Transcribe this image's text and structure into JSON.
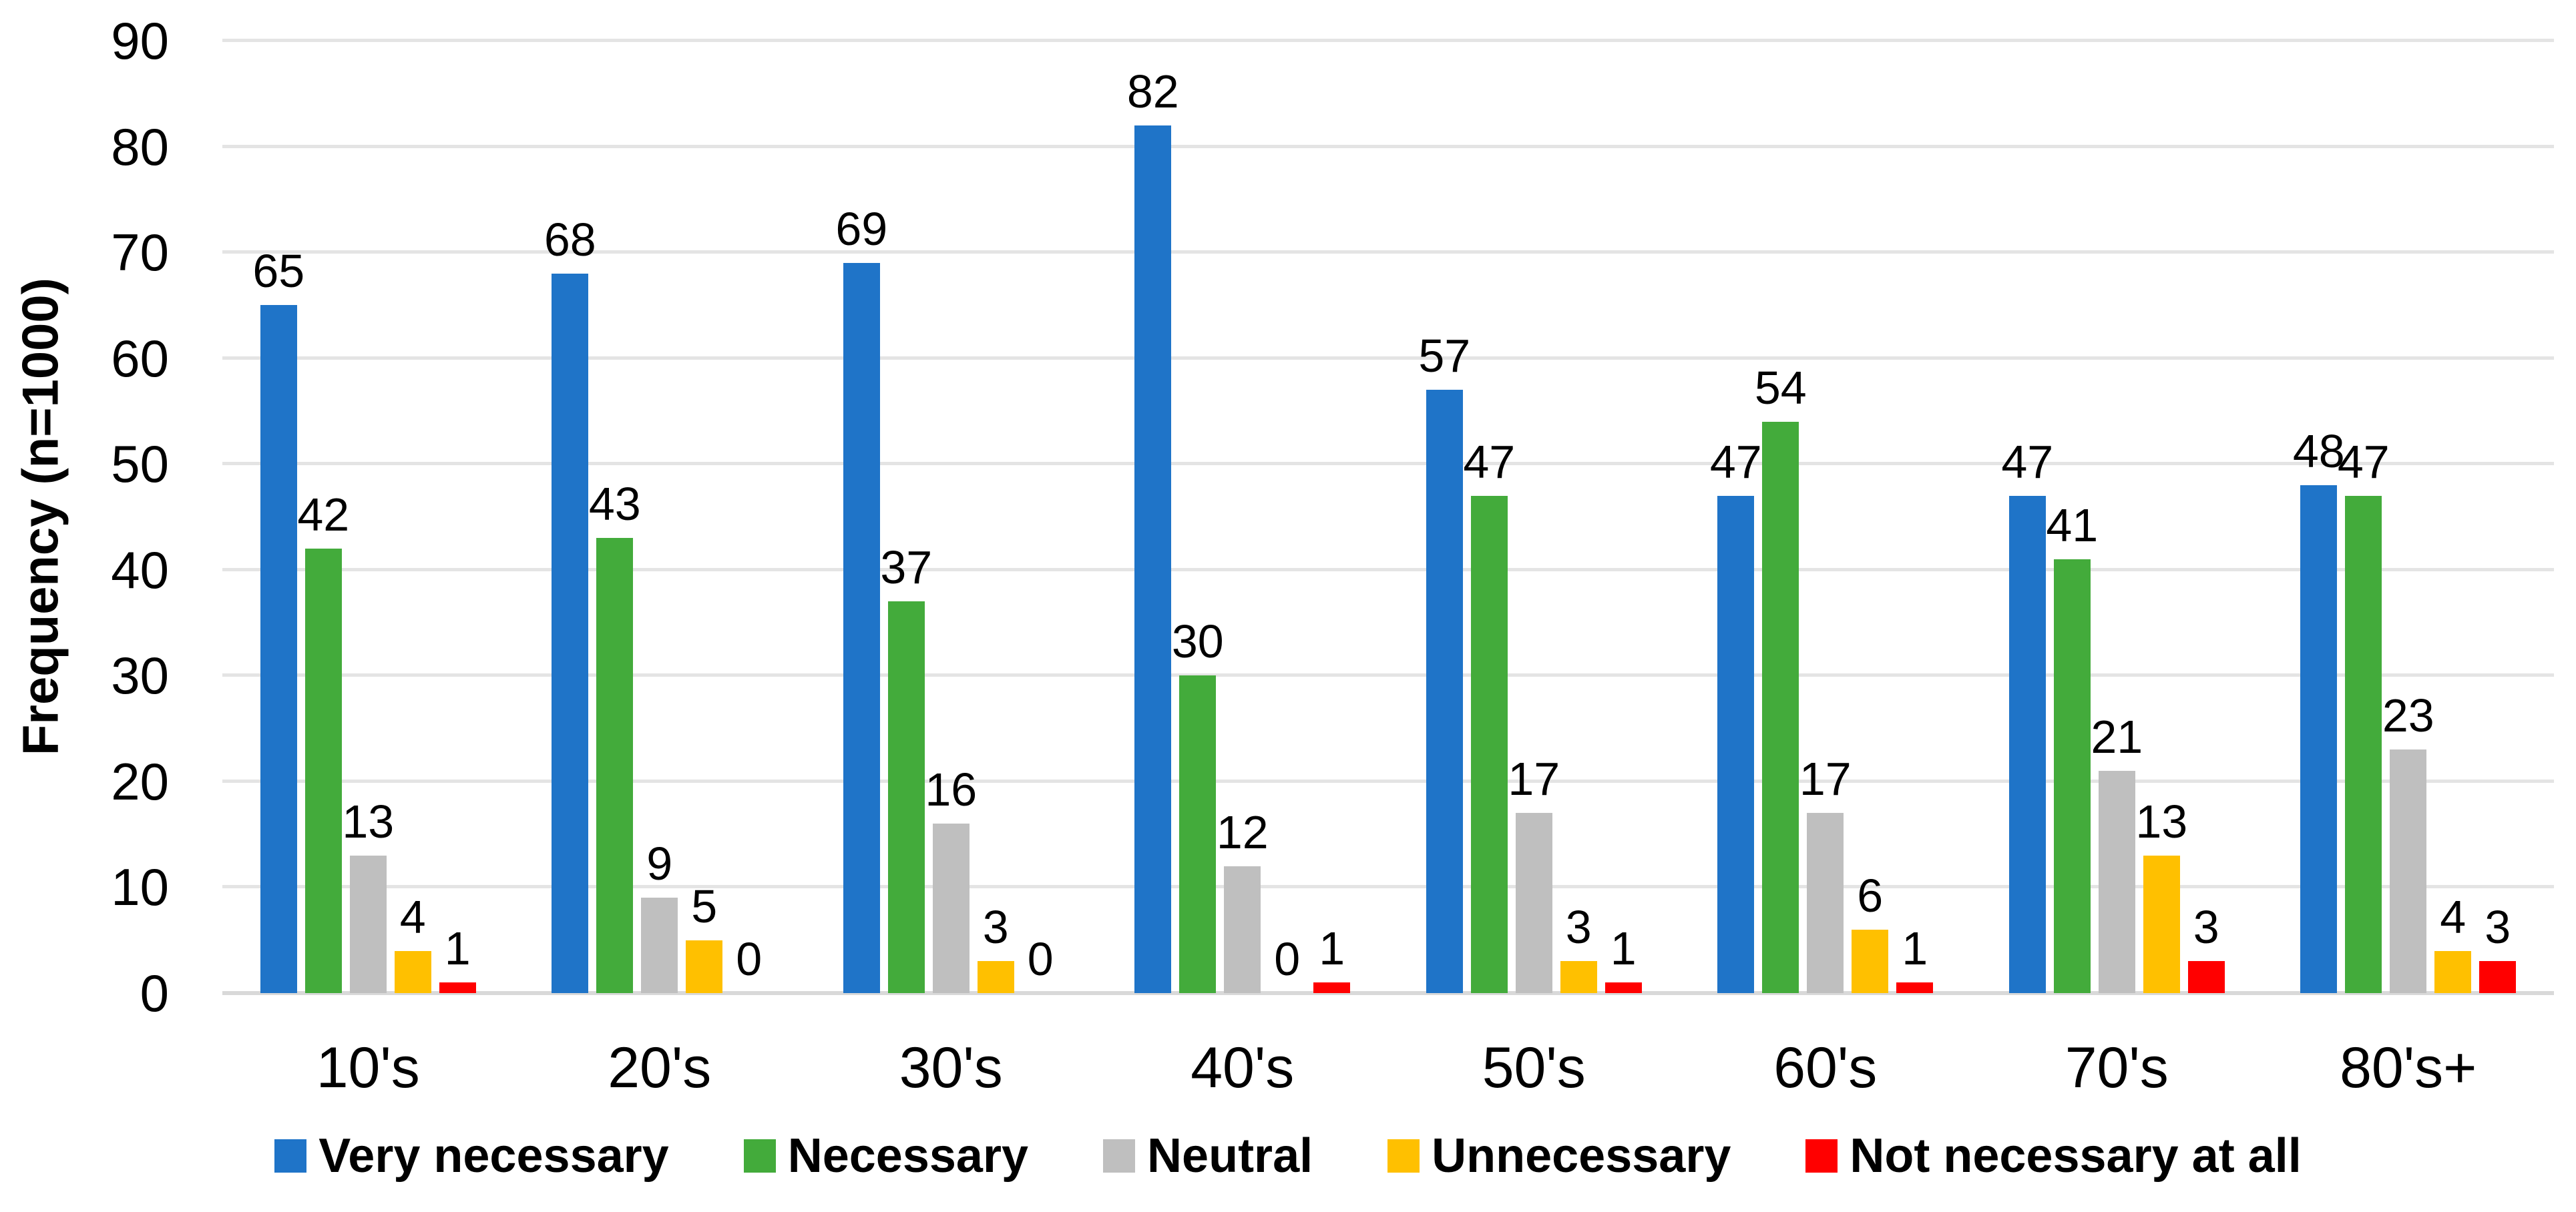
{
  "chart_data": {
    "type": "bar",
    "title": "",
    "xlabel": "",
    "ylabel": "Frequency (n=1000)",
    "ylim": [
      0,
      90
    ],
    "yticks": [
      0,
      10,
      20,
      30,
      40,
      50,
      60,
      70,
      80,
      90
    ],
    "grid": "horizontal",
    "legend_position": "bottom",
    "bar_value_labels": true,
    "categories": [
      "10's",
      "20's",
      "30's",
      "40's",
      "50's",
      "60's",
      "70's",
      "80's+"
    ],
    "series": [
      {
        "name": "Very necessary",
        "color": "#1F74C8",
        "values": [
          65,
          68,
          69,
          82,
          57,
          47,
          47,
          48
        ]
      },
      {
        "name": "Necessary",
        "color": "#43AB3B",
        "values": [
          42,
          43,
          37,
          30,
          47,
          54,
          41,
          47
        ]
      },
      {
        "name": "Neutral",
        "color": "#BFBFBF",
        "values": [
          13,
          9,
          16,
          12,
          17,
          17,
          21,
          23
        ]
      },
      {
        "name": "Unnecessary",
        "color": "#FFC000",
        "values": [
          4,
          5,
          3,
          0,
          3,
          6,
          13,
          4
        ]
      },
      {
        "name": "Not necessary at all",
        "color": "#FF0000",
        "values": [
          1,
          0,
          0,
          1,
          1,
          1,
          3,
          3
        ]
      }
    ],
    "colors": {
      "gridline": "#E4E4E4",
      "axis_line": "#D9D9D9",
      "text": "#000000",
      "background": "#FFFFFF"
    }
  }
}
